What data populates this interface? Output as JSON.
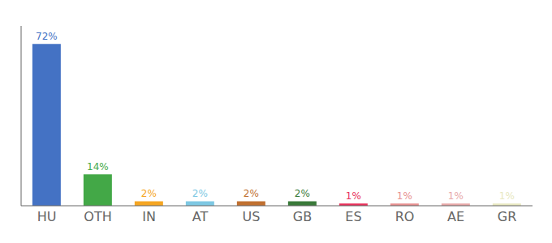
{
  "chart_data": {
    "type": "bar",
    "categories": [
      "HU",
      "OTH",
      "IN",
      "AT",
      "US",
      "GB",
      "ES",
      "RO",
      "AE",
      "GR"
    ],
    "values": [
      72,
      14,
      2,
      2,
      2,
      2,
      1,
      1,
      1,
      1
    ],
    "value_labels": [
      "72%",
      "14%",
      "2%",
      "2%",
      "2%",
      "2%",
      "1%",
      "1%",
      "1%",
      "1%"
    ],
    "colors": [
      "#4472c4",
      "#43a847",
      "#f5a623",
      "#7ec8e3",
      "#c07030",
      "#3a7a3a",
      "#e8305a",
      "#e89090",
      "#e8a8a8",
      "#e8e8c0"
    ],
    "ylim": [
      0,
      80
    ],
    "grid": false,
    "tick_labels": "x",
    "data_labels": true
  }
}
